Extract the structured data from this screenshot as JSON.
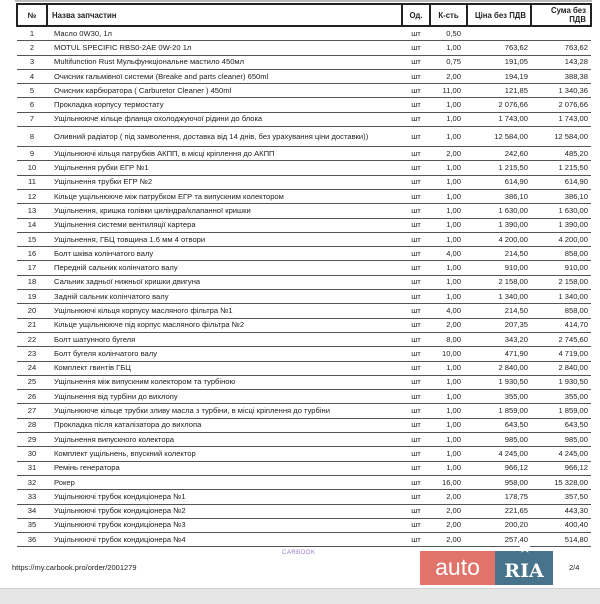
{
  "table": {
    "headers": {
      "num": "№",
      "name": "Назва запчастин",
      "unit": "Од.",
      "qty": "К-сть",
      "price": "Ціна без ПДВ",
      "sum": "Сума без ПДВ"
    },
    "rows": [
      {
        "num": "1",
        "name": "Масло 0W30, 1л",
        "unit": "шт",
        "qty": "0,50",
        "price": "",
        "sum": ""
      },
      {
        "num": "2",
        "name": "MOTUL SPECIFIC RBS0-2AE 0W-20 1л",
        "unit": "шт",
        "qty": "1,00",
        "price": "763,62",
        "sum": "763,62"
      },
      {
        "num": "3",
        "name": "Multifunction Rust Мульфункціональне мастило 450мл",
        "unit": "шт",
        "qty": "0,75",
        "price": "191,05",
        "sum": "143,28"
      },
      {
        "num": "4",
        "name": "Очисник гальмівної системи (Breake and parts cleaner) 650ml",
        "unit": "шт",
        "qty": "2,00",
        "price": "194,19",
        "sum": "388,38"
      },
      {
        "num": "5",
        "name": "Очисник карбюратора ( Carburetor Cleaner ) 450ml",
        "unit": "шт",
        "qty": "11,00",
        "price": "121,85",
        "sum": "1 340,36"
      },
      {
        "num": "6",
        "name": "Прокладка корпусу термостату",
        "unit": "шт",
        "qty": "1,00",
        "price": "2 076,66",
        "sum": "2 076,66"
      },
      {
        "num": "7",
        "name": "Ущільнююче кільце фланця охолоджуючої рідини до блока",
        "unit": "шт",
        "qty": "1,00",
        "price": "1 743,00",
        "sum": "1 743,00"
      },
      {
        "num": "8",
        "name": "Оливний радіатор ( під замволення, доставка від 14 днів, без урахування ціни доставки))",
        "unit": "шт",
        "qty": "1,00",
        "price": "12 584,00",
        "sum": "12 584,00"
      },
      {
        "num": "9",
        "name": "Ущільнюючі кільця патрубків АКПП, в місці кріплення до АКПП",
        "unit": "шт",
        "qty": "2,00",
        "price": "242,60",
        "sum": "485,20"
      },
      {
        "num": "10",
        "name": "Ущільнення рубки ЕГР №1",
        "unit": "шт",
        "qty": "1,00",
        "price": "1 215,50",
        "sum": "1 215,50"
      },
      {
        "num": "11",
        "name": "Ущільнення трубки ЕГР №2",
        "unit": "шт",
        "qty": "1,00",
        "price": "614,90",
        "sum": "614,90"
      },
      {
        "num": "12",
        "name": "Кільце ущільнююче між патрубком ЕГР та випускним колектором",
        "unit": "шт",
        "qty": "1,00",
        "price": "386,10",
        "sum": "386,10"
      },
      {
        "num": "13",
        "name": "Ущільнення, кришка голівки циліндра/клапанної кришки",
        "unit": "шт",
        "qty": "1,00",
        "price": "1 630,00",
        "sum": "1 630,00"
      },
      {
        "num": "14",
        "name": "Ущільнення системи вентиляції картера",
        "unit": "шт",
        "qty": "1,00",
        "price": "1 390,00",
        "sum": "1 390,00"
      },
      {
        "num": "15",
        "name": "Ущільнення, ГБЦ товщина 1.6 мм 4 отвори",
        "unit": "шт",
        "qty": "1,00",
        "price": "4 200,00",
        "sum": "4 200,00"
      },
      {
        "num": "16",
        "name": "Болт шківа колінчатого валу",
        "unit": "шт",
        "qty": "4,00",
        "price": "214,50",
        "sum": "858,00"
      },
      {
        "num": "17",
        "name": "Передній сальник колінчатого валу",
        "unit": "шт",
        "qty": "1,00",
        "price": "910,00",
        "sum": "910,00"
      },
      {
        "num": "18",
        "name": "Сальник задньої нижньої кришки двигуна",
        "unit": "шт",
        "qty": "1,00",
        "price": "2 158,00",
        "sum": "2 158,00"
      },
      {
        "num": "19",
        "name": "Задній сальник колінчатого валу",
        "unit": "шт",
        "qty": "1,00",
        "price": "1 340,00",
        "sum": "1 340,00"
      },
      {
        "num": "20",
        "name": "Ущільнюючі кільця корпусу масляного фільтра №1",
        "unit": "шт",
        "qty": "4,00",
        "price": "214,50",
        "sum": "858,00"
      },
      {
        "num": "21",
        "name": "Кільце ущільнююче під корпус масляного фільтра №2",
        "unit": "шт",
        "qty": "2,00",
        "price": "207,35",
        "sum": "414,70"
      },
      {
        "num": "22",
        "name": "Болт шатунного бугеля",
        "unit": "шт",
        "qty": "8,00",
        "price": "343,20",
        "sum": "2 745,60"
      },
      {
        "num": "23",
        "name": "Болт бугеля колінчатого валу",
        "unit": "шт",
        "qty": "10,00",
        "price": "471,90",
        "sum": "4 719,00"
      },
      {
        "num": "24",
        "name": "Комплект гвинтів ГБЦ",
        "unit": "шт",
        "qty": "1,00",
        "price": "2 840,00",
        "sum": "2 840,00"
      },
      {
        "num": "25",
        "name": "Ущільнення між випускним колектором та турбіною",
        "unit": "шт",
        "qty": "1,00",
        "price": "1 930,50",
        "sum": "1 930,50"
      },
      {
        "num": "26",
        "name": "Ущільнення від турбіни до вихлопу",
        "unit": "шт",
        "qty": "1,00",
        "price": "355,00",
        "sum": "355,00"
      },
      {
        "num": "27",
        "name": "Ущільнююче кільце трубки зливу масла з турбіни, в місці кріплення до турбіни",
        "unit": "шт",
        "qty": "1,00",
        "price": "1 859,00",
        "sum": "1 859,00"
      },
      {
        "num": "28",
        "name": "Прокладка після каталізатора до вихлопа",
        "unit": "шт",
        "qty": "1,00",
        "price": "643,50",
        "sum": "643,50"
      },
      {
        "num": "29",
        "name": "Ущільнення випускного колектора",
        "unit": "шт",
        "qty": "1,00",
        "price": "985,00",
        "sum": "985,00"
      },
      {
        "num": "30",
        "name": "Комплект ущільнень, впускний колектор",
        "unit": "шт",
        "qty": "1,00",
        "price": "4 245,00",
        "sum": "4 245,00"
      },
      {
        "num": "31",
        "name": "Ремінь генератора",
        "unit": "шт",
        "qty": "1,00",
        "price": "966,12",
        "sum": "966,12"
      },
      {
        "num": "32",
        "name": "Рокер",
        "unit": "шт",
        "qty": "16,00",
        "price": "958,00",
        "sum": "15 328,00"
      },
      {
        "num": "33",
        "name": "Ущільнюючі трубок кондиціонера №1",
        "unit": "шт",
        "qty": "2,00",
        "price": "178,75",
        "sum": "357,50"
      },
      {
        "num": "34",
        "name": "Ущільнюючі трубок кондиціонера №2",
        "unit": "шт",
        "qty": "2,00",
        "price": "221,65",
        "sum": "443,30"
      },
      {
        "num": "35",
        "name": "Ущільнюючі трубок кондиціонера №3",
        "unit": "шт",
        "qty": "2,00",
        "price": "200,20",
        "sum": "400,40"
      },
      {
        "num": "36",
        "name": "Ущільнюючі трубок кондиціонера №4",
        "unit": "шт",
        "qty": "2,00",
        "price": "257,40",
        "sum": "514,80"
      }
    ]
  },
  "watermark": {
    "auto": "auto",
    "ria": "RIA",
    "colors": {
      "auto": "#dc5a50",
      "ria": "#285a78"
    }
  },
  "footer": {
    "brand": "CARBOOK",
    "url": "https://my.carbook.pro/order/2001279",
    "page": "2/4"
  }
}
